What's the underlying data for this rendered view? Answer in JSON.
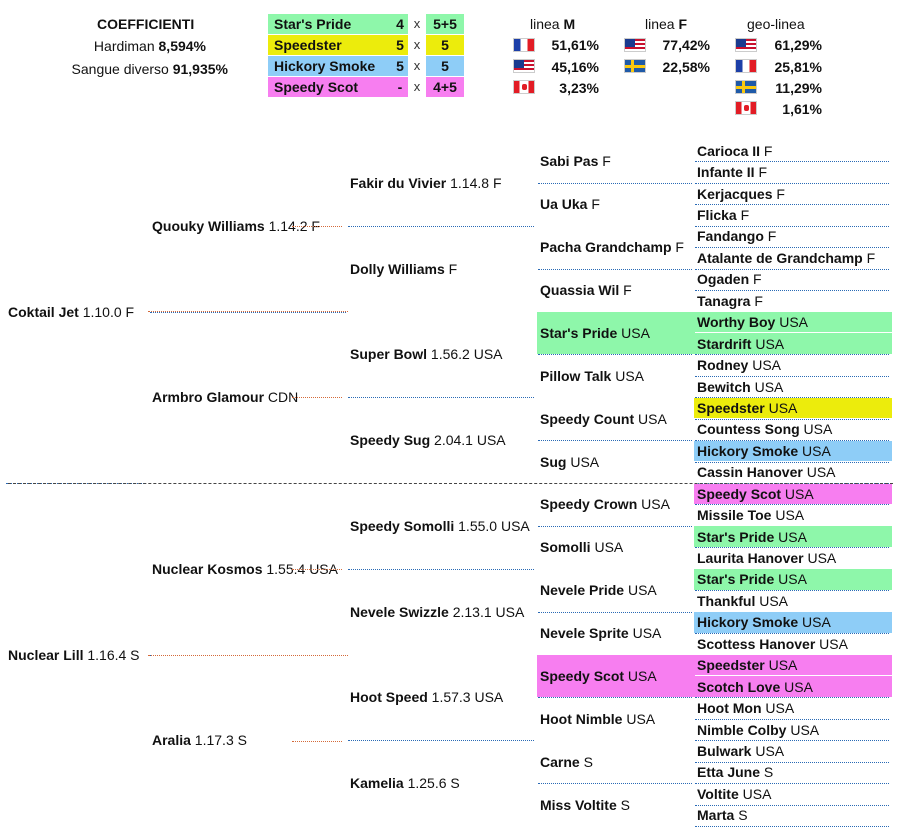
{
  "colors": {
    "stars_pride": "#8ef7aa",
    "speedster": "#ecec0c",
    "hickory_smoke": "#8ecdf7",
    "speedy_scot": "#f77ef0"
  },
  "coefficients": {
    "title": "COEFFICIENTI",
    "hardiman_label": "Hardiman",
    "hardiman_value": "8,594%",
    "sangue_label": "Sangue diverso",
    "sangue_value": "91,935%"
  },
  "inbreeding": [
    {
      "name": "Star's Pride",
      "g1": "4",
      "x": "x",
      "g2": "5+5"
    },
    {
      "name": "Speedster",
      "g1": "5",
      "x": "x",
      "g2": "5"
    },
    {
      "name": "Hickory Smoke",
      "g1": "5",
      "x": "x",
      "g2": "5"
    },
    {
      "name": "Speedy Scot",
      "g1": "-",
      "x": "x",
      "g2": "4+5"
    }
  ],
  "lines": {
    "m_label_prefix": "linea",
    "m_label_letter": "M",
    "f_label_prefix": "linea",
    "f_label_letter": "F",
    "geo_label": "geo-linea",
    "m": [
      {
        "flag": "france-flag-icon",
        "pct": "51,61%"
      },
      {
        "flag": "usa-flag-icon",
        "pct": "45,16%"
      },
      {
        "flag": "canada-flag-icon",
        "pct": "3,23%"
      }
    ],
    "f": [
      {
        "flag": "usa-flag-icon",
        "pct": "77,42%"
      },
      {
        "flag": "sweden-flag-icon",
        "pct": "22,58%"
      }
    ],
    "geo": [
      {
        "flag": "usa-flag-icon",
        "pct": "61,29%"
      },
      {
        "flag": "france-flag-icon",
        "pct": "25,81%"
      },
      {
        "flag": "sweden-flag-icon",
        "pct": "11,29%"
      },
      {
        "flag": "canada-flag-icon",
        "pct": "1,61%"
      }
    ]
  },
  "pedigree": {
    "g1": [
      {
        "name": "Coktail Jet",
        "info": "1.10.0 F"
      },
      {
        "name": "Nuclear Lill",
        "info": "1.16.4 S"
      }
    ],
    "g2": [
      {
        "name": "Quouky Williams",
        "info": "1.14.2 F"
      },
      {
        "name": "Armbro Glamour",
        "info": " CDN"
      },
      {
        "name": "Nuclear Kosmos",
        "info": "1.55.4 USA"
      },
      {
        "name": "Aralia",
        "info": "1.17.3 S"
      }
    ],
    "g3": [
      {
        "name": "Fakir du Vivier",
        "info": "1.14.8 F"
      },
      {
        "name": "Dolly Williams",
        "info": " F"
      },
      {
        "name": "Super Bowl",
        "info": "1.56.2 USA"
      },
      {
        "name": "Speedy Sug",
        "info": "2.04.1 USA"
      },
      {
        "name": "Speedy Somolli",
        "info": "1.55.0 USA"
      },
      {
        "name": "Nevele Swizzle",
        "info": "2.13.1 USA"
      },
      {
        "name": "Hoot Speed",
        "info": "1.57.3 USA"
      },
      {
        "name": "Kamelia",
        "info": "1.25.6 S"
      }
    ],
    "g4": [
      {
        "name": "Sabi Pas",
        "info": "F"
      },
      {
        "name": "Ua Uka",
        "info": "F"
      },
      {
        "name": "Pacha Grandchamp",
        "info": "F"
      },
      {
        "name": "Quassia Wil",
        "info": "F"
      },
      {
        "name": "Star's Pride",
        "info": "USA"
      },
      {
        "name": "Pillow Talk",
        "info": "USA"
      },
      {
        "name": "Speedy Count",
        "info": "USA"
      },
      {
        "name": "Sug",
        "info": "USA"
      },
      {
        "name": "Speedy Crown",
        "info": "USA"
      },
      {
        "name": "Somolli",
        "info": "USA"
      },
      {
        "name": "Nevele Pride",
        "info": "USA"
      },
      {
        "name": "Nevele Sprite",
        "info": "USA"
      },
      {
        "name": "Speedy Scot",
        "info": "USA"
      },
      {
        "name": "Hoot Nimble",
        "info": "USA"
      },
      {
        "name": "Carne",
        "info": "S"
      },
      {
        "name": "Miss Voltite",
        "info": "S"
      }
    ],
    "g5": [
      {
        "name": "Carioca II",
        "info": "F"
      },
      {
        "name": "Infante II",
        "info": "F"
      },
      {
        "name": "Kerjacques",
        "info": "F"
      },
      {
        "name": "Flicka",
        "info": "F"
      },
      {
        "name": "Fandango",
        "info": "F"
      },
      {
        "name": "Atalante de Grandchamp",
        "info": "F"
      },
      {
        "name": "Ogaden",
        "info": "F"
      },
      {
        "name": "Tanagra",
        "info": "F"
      },
      {
        "name": "Worthy Boy",
        "info": "USA"
      },
      {
        "name": "Stardrift",
        "info": "USA"
      },
      {
        "name": "Rodney",
        "info": "USA"
      },
      {
        "name": "Bewitch",
        "info": "USA"
      },
      {
        "name": "Speedster",
        "info": "USA"
      },
      {
        "name": "Countess Song",
        "info": "USA"
      },
      {
        "name": "Hickory Smoke",
        "info": "USA"
      },
      {
        "name": "Cassin Hanover",
        "info": "USA"
      },
      {
        "name": "Speedy Scot",
        "info": "USA"
      },
      {
        "name": "Missile Toe",
        "info": "USA"
      },
      {
        "name": "Star's Pride",
        "info": "USA"
      },
      {
        "name": "Laurita Hanover",
        "info": "USA"
      },
      {
        "name": "Star's Pride",
        "info": "USA"
      },
      {
        "name": "Thankful",
        "info": "USA"
      },
      {
        "name": "Hickory Smoke",
        "info": "USA"
      },
      {
        "name": "Scottess Hanover",
        "info": "USA"
      },
      {
        "name": "Speedster",
        "info": "USA"
      },
      {
        "name": "Scotch Love",
        "info": "USA"
      },
      {
        "name": "Hoot Mon",
        "info": "USA"
      },
      {
        "name": "Nimble Colby",
        "info": "USA"
      },
      {
        "name": "Bulwark",
        "info": "USA"
      },
      {
        "name": "Etta June",
        "info": "S"
      },
      {
        "name": "Voltite",
        "info": "USA"
      },
      {
        "name": "Marta",
        "info": "S"
      }
    ]
  }
}
